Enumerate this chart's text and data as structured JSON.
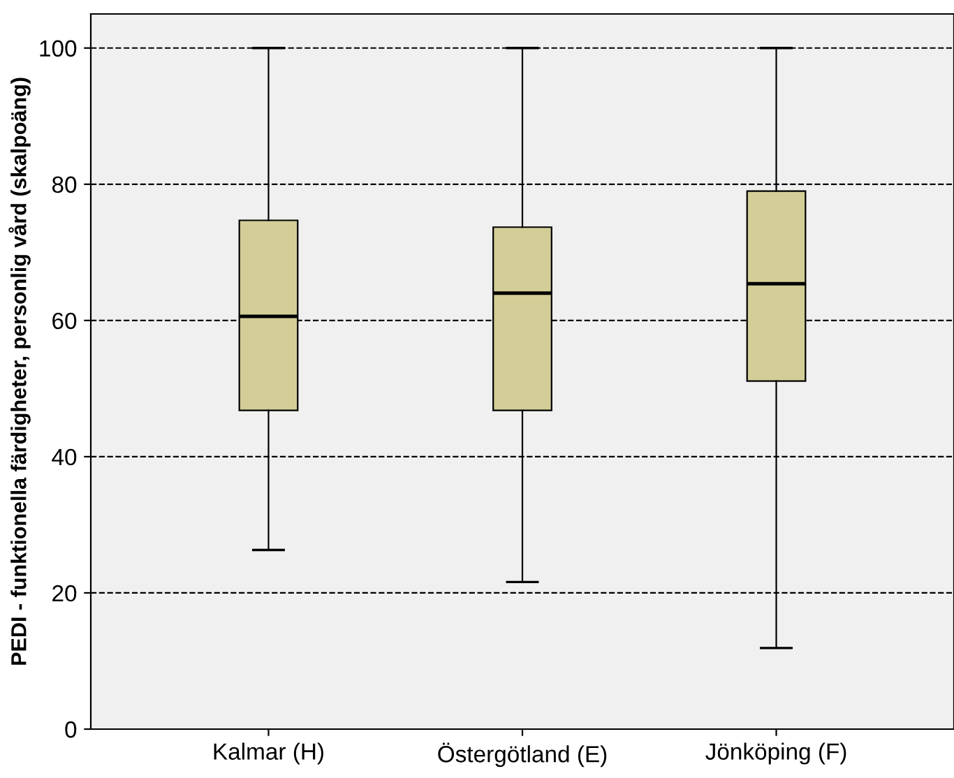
{
  "chart_data": {
    "type": "box",
    "ylabel": "PEDI - funktionella färdigheter, personlig vård (skalpoäng)",
    "categories": [
      "Kalmar (H)",
      "Östergötland (E)",
      "Jönköping (F)"
    ],
    "boxes": [
      {
        "low": 26.3,
        "q1": 46.8,
        "median": 60.6,
        "q3": 74.7,
        "high": 100
      },
      {
        "low": 21.6,
        "q1": 46.8,
        "median": 64.0,
        "q3": 73.7,
        "high": 100
      },
      {
        "low": 11.9,
        "q1": 51.1,
        "median": 65.4,
        "q3": 79.0,
        "high": 100
      }
    ],
    "color": "#d3ce97",
    "ylim": [
      0,
      105
    ],
    "yticks": [
      0,
      20,
      40,
      60,
      80,
      100
    ],
    "grid": "y"
  }
}
